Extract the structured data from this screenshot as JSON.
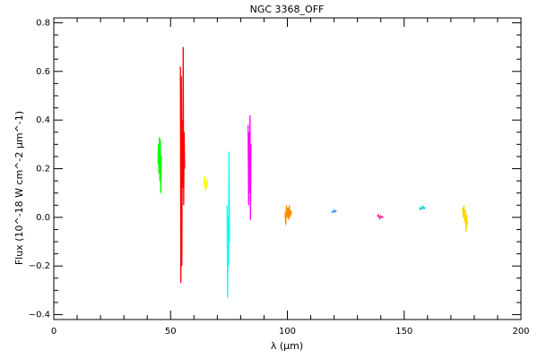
{
  "chart_data": {
    "type": "line",
    "title": "NGC 3368_OFF",
    "xlabel": "λ (μm)",
    "ylabel": "Flux (10^-18 W cm^-2 μm^-1)",
    "xlim": [
      0,
      200
    ],
    "ylim": [
      -0.42,
      0.82
    ],
    "xticks": [
      0,
      50,
      100,
      150,
      200
    ],
    "yticks": [
      -0.4,
      -0.2,
      0.0,
      0.2,
      0.4,
      0.6,
      0.8
    ],
    "ytick_labels": [
      "−0.4",
      "−0.2",
      "0.0",
      "0.2",
      "0.4",
      "0.6",
      "0.8"
    ],
    "grid": false,
    "legend": "none",
    "series": [
      {
        "color": "#00ff00",
        "points": [
          [
            44.6,
            0.22
          ],
          [
            44.8,
            0.3
          ],
          [
            45.0,
            0.18
          ],
          [
            45.2,
            0.33
          ],
          [
            45.4,
            0.15
          ],
          [
            45.6,
            0.32
          ],
          [
            45.8,
            0.1
          ],
          [
            46.0,
            0.25
          ]
        ]
      },
      {
        "color": "#ff0000",
        "points": [
          [
            54.2,
            0.62
          ],
          [
            54.4,
            -0.27
          ],
          [
            54.6,
            0.58
          ],
          [
            54.8,
            -0.2
          ],
          [
            55.0,
            0.4
          ],
          [
            55.2,
            0.12
          ],
          [
            55.4,
            0.7
          ],
          [
            55.6,
            0.05
          ],
          [
            55.8,
            0.35
          ],
          [
            56.0,
            0.2
          ]
        ]
      },
      {
        "color": "#ffff00",
        "points": [
          [
            64.3,
            0.13
          ],
          [
            64.6,
            0.17
          ],
          [
            64.9,
            0.11
          ],
          [
            65.2,
            0.15
          ],
          [
            65.5,
            0.12
          ],
          [
            65.8,
            0.16
          ]
        ]
      },
      {
        "color": "#00ffff",
        "points": [
          [
            74.2,
            0.05
          ],
          [
            74.4,
            -0.33
          ],
          [
            74.6,
            0.0
          ],
          [
            74.8,
            -0.2
          ],
          [
            75.0,
            0.27
          ],
          [
            75.2,
            -0.1
          ]
        ]
      },
      {
        "color": "#ff00ff",
        "points": [
          [
            83.2,
            0.38
          ],
          [
            83.4,
            0.05
          ],
          [
            83.6,
            0.35
          ],
          [
            83.8,
            0.1
          ],
          [
            84.0,
            0.42
          ],
          [
            84.2,
            -0.01
          ],
          [
            84.4,
            0.3
          ]
        ]
      },
      {
        "color": "#ff8c00",
        "points": [
          [
            99.0,
            0.02
          ],
          [
            99.3,
            -0.03
          ],
          [
            99.6,
            0.05
          ],
          [
            99.9,
            0.0
          ],
          [
            100.2,
            0.04
          ],
          [
            100.5,
            -0.01
          ],
          [
            100.8,
            0.05
          ],
          [
            101.1,
            0.0
          ],
          [
            101.4,
            0.03
          ],
          [
            101.7,
            0.01
          ]
        ]
      },
      {
        "color": "#1e90ff",
        "points": [
          [
            119.0,
            0.025
          ],
          [
            119.5,
            0.02
          ],
          [
            120.0,
            0.03
          ],
          [
            120.5,
            0.022
          ],
          [
            121.0,
            0.028
          ]
        ]
      },
      {
        "color": "#ff1493",
        "points": [
          [
            138.5,
            0.003
          ],
          [
            139.0,
            0.01
          ],
          [
            139.5,
            -0.005
          ],
          [
            140.0,
            0.006
          ],
          [
            140.5,
            -0.002
          ],
          [
            141.0,
            0.004
          ]
        ]
      },
      {
        "color": "#00ced1",
        "points": [
          [
            156.5,
            0.03
          ],
          [
            157.0,
            0.04
          ],
          [
            157.5,
            0.033
          ],
          [
            158.0,
            0.045
          ],
          [
            158.5,
            0.035
          ],
          [
            159.0,
            0.042
          ]
        ]
      },
      {
        "color": "#ffd700",
        "points": [
          [
            175.0,
            0.04
          ],
          [
            175.3,
            0.0
          ],
          [
            175.6,
            0.05
          ],
          [
            175.9,
            -0.02
          ],
          [
            176.2,
            0.03
          ],
          [
            176.5,
            -0.06
          ],
          [
            176.8,
            0.01
          ],
          [
            177.1,
            -0.03
          ]
        ]
      }
    ]
  }
}
